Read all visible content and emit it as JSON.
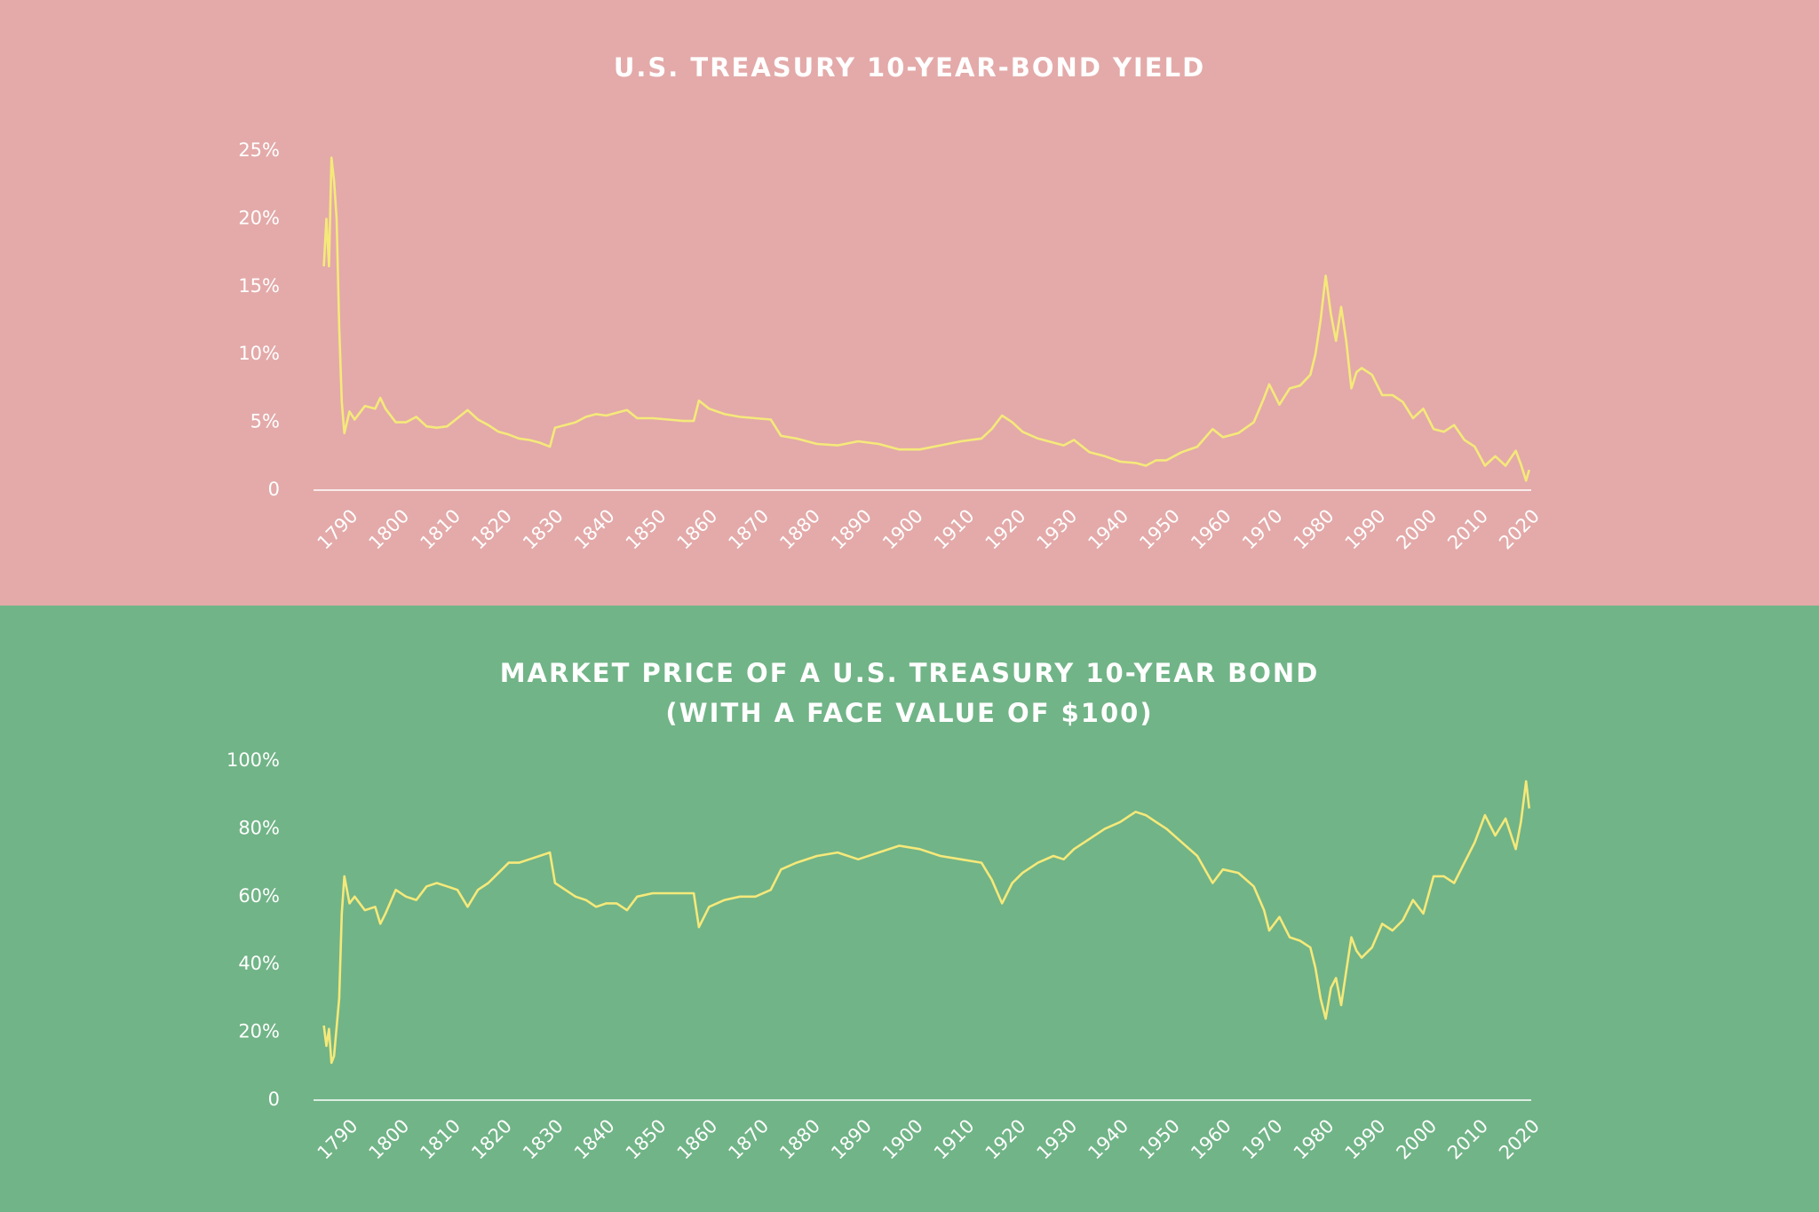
{
  "chart_data": [
    {
      "type": "line",
      "title": "U.S. TREASURY 10-YEAR-BOND YIELD",
      "background": "#e3aaa9",
      "grid": false,
      "x": [
        1786,
        1786.5,
        1787,
        1787.5,
        1788,
        1788.5,
        1789,
        1789.5,
        1790,
        1791,
        1792,
        1794,
        1796,
        1797,
        1798,
        1800,
        1802,
        1804,
        1806,
        1808,
        1810,
        1812,
        1814,
        1816,
        1818,
        1820,
        1822,
        1824,
        1826,
        1828,
        1830,
        1831,
        1833,
        1835,
        1837,
        1839,
        1841,
        1843,
        1845,
        1847,
        1850,
        1853,
        1856,
        1858,
        1859,
        1861,
        1864,
        1867,
        1870,
        1873,
        1875,
        1878,
        1882,
        1886,
        1890,
        1894,
        1898,
        1902,
        1906,
        1910,
        1914,
        1916,
        1918,
        1920,
        1922,
        1925,
        1928,
        1930,
        1932,
        1935,
        1938,
        1941,
        1944,
        1946,
        1948,
        1950,
        1953,
        1956,
        1959,
        1961,
        1964,
        1967,
        1969,
        1970,
        1972,
        1974,
        1976,
        1978,
        1979,
        1980,
        1981,
        1982,
        1983,
        1984,
        1985,
        1986,
        1987,
        1988,
        1990,
        1992,
        1994,
        1996,
        1998,
        2000,
        2002,
        2004,
        2006,
        2008,
        2010,
        2012,
        2014,
        2016,
        2018,
        2019,
        2020,
        2020.6
      ],
      "series": [
        {
          "color": "#f5e97a",
          "values": [
            16.5,
            20,
            16.5,
            24.5,
            22.8,
            20,
            12,
            6.5,
            4.2,
            5.8,
            5.2,
            6.2,
            6.0,
            6.8,
            6.0,
            5.0,
            5.0,
            5.4,
            4.7,
            4.6,
            4.7,
            5.3,
            5.9,
            5.2,
            4.8,
            4.3,
            4.1,
            3.8,
            3.7,
            3.5,
            3.2,
            4.6,
            4.8,
            5.0,
            5.4,
            5.6,
            5.5,
            5.7,
            5.9,
            5.3,
            5.3,
            5.2,
            5.1,
            5.1,
            6.6,
            6.0,
            5.6,
            5.4,
            5.3,
            5.2,
            4.0,
            3.8,
            3.4,
            3.3,
            3.6,
            3.4,
            3.0,
            3.0,
            3.3,
            3.6,
            3.8,
            4.5,
            5.5,
            5.0,
            4.3,
            3.8,
            3.5,
            3.3,
            3.7,
            2.8,
            2.5,
            2.1,
            2.0,
            1.8,
            2.2,
            2.2,
            2.8,
            3.2,
            4.5,
            3.9,
            4.2,
            5.0,
            6.8,
            7.8,
            6.3,
            7.5,
            7.7,
            8.5,
            10.0,
            12.5,
            15.8,
            13.0,
            11.0,
            13.5,
            11.0,
            7.5,
            8.7,
            9.0,
            8.5,
            7.0,
            7.0,
            6.5,
            5.3,
            6.0,
            4.5,
            4.3,
            4.8,
            3.7,
            3.2,
            1.8,
            2.5,
            1.8,
            2.9,
            1.9,
            0.7,
            1.5
          ]
        }
      ],
      "xlim": [
        1784,
        2021
      ],
      "xticks": [
        1790,
        1800,
        1810,
        1820,
        1830,
        1840,
        1850,
        1860,
        1870,
        1880,
        1890,
        1900,
        1910,
        1920,
        1930,
        1940,
        1950,
        1960,
        1970,
        1980,
        1990,
        2000,
        2010,
        2020
      ],
      "ylim": [
        0,
        25
      ],
      "yticks": [
        0,
        {
          "value": 5,
          "label": "5%"
        },
        {
          "value": 10,
          "label": "10%"
        },
        {
          "value": 15,
          "label": "15%"
        },
        {
          "value": 20,
          "label": "20%"
        },
        {
          "value": 25,
          "label": "25%"
        }
      ]
    },
    {
      "type": "line",
      "title": [
        "MARKET PRICE OF A U.S. TREASURY 10-YEAR BOND",
        "(WITH A FACE VALUE OF $100)"
      ],
      "background": "#71b487",
      "grid": false,
      "x": [
        1786,
        1786.5,
        1787,
        1787.5,
        1788,
        1789,
        1789.5,
        1790,
        1791,
        1792,
        1794,
        1796,
        1797,
        1798,
        1800,
        1802,
        1804,
        1806,
        1808,
        1810,
        1812,
        1814,
        1816,
        1818,
        1820,
        1822,
        1824,
        1826,
        1828,
        1830,
        1831,
        1833,
        1835,
        1837,
        1839,
        1841,
        1843,
        1845,
        1847,
        1850,
        1853,
        1856,
        1858,
        1859,
        1861,
        1864,
        1867,
        1870,
        1873,
        1875,
        1878,
        1882,
        1886,
        1890,
        1894,
        1898,
        1902,
        1906,
        1910,
        1914,
        1916,
        1918,
        1920,
        1922,
        1925,
        1928,
        1930,
        1932,
        1935,
        1938,
        1941,
        1944,
        1946,
        1948,
        1950,
        1953,
        1956,
        1959,
        1961,
        1964,
        1967,
        1969,
        1970,
        1972,
        1974,
        1976,
        1978,
        1979,
        1980,
        1981,
        1982,
        1983,
        1984,
        1985,
        1986,
        1987,
        1988,
        1990,
        1992,
        1994,
        1996,
        1998,
        2000,
        2002,
        2004,
        2006,
        2008,
        2010,
        2012,
        2014,
        2016,
        2018,
        2019,
        2020,
        2020.6
      ],
      "series": [
        {
          "color": "#f5e97a",
          "values": [
            22,
            16,
            21,
            11,
            13,
            30,
            55,
            66,
            58,
            60,
            56,
            57,
            52,
            55,
            62,
            60,
            59,
            63,
            64,
            63,
            62,
            57,
            62,
            64,
            67,
            70,
            70,
            71,
            72,
            73,
            64,
            62,
            60,
            59,
            57,
            58,
            58,
            56,
            60,
            61,
            61,
            61,
            61,
            51,
            57,
            59,
            60,
            60,
            62,
            68,
            70,
            72,
            73,
            71,
            73,
            75,
            74,
            72,
            71,
            70,
            65,
            58,
            64,
            67,
            70,
            72,
            71,
            74,
            77,
            80,
            82,
            85,
            84,
            82,
            80,
            76,
            72,
            64,
            68,
            67,
            63,
            56,
            50,
            54,
            48,
            47,
            45,
            39,
            30,
            24,
            33,
            36,
            28,
            38,
            48,
            44,
            42,
            45,
            52,
            50,
            53,
            59,
            55,
            66,
            66,
            64,
            70,
            76,
            84,
            78,
            83,
            74,
            82,
            94,
            86
          ]
        }
      ],
      "xlim": [
        1784,
        2021
      ],
      "xticks": [
        1790,
        1800,
        1810,
        1820,
        1830,
        1840,
        1850,
        1860,
        1870,
        1880,
        1890,
        1900,
        1910,
        1920,
        1930,
        1940,
        1950,
        1960,
        1970,
        1980,
        1990,
        2000,
        2010,
        2020
      ],
      "ylim": [
        0,
        100
      ],
      "yticks": [
        0,
        {
          "value": 20,
          "label": "20%"
        },
        {
          "value": 40,
          "label": "40%"
        },
        {
          "value": 60,
          "label": "60%"
        },
        {
          "value": 80,
          "label": "80%"
        },
        {
          "value": 100,
          "label": "100%"
        }
      ]
    }
  ]
}
